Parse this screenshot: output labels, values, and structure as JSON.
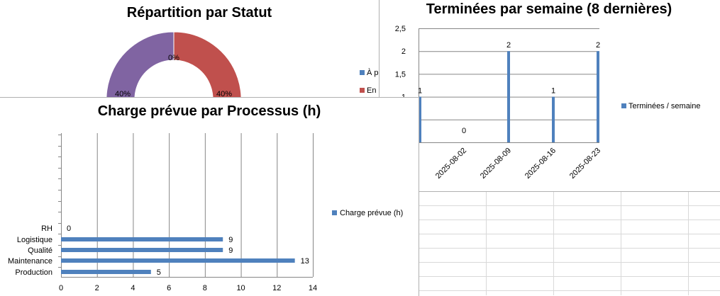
{
  "colors": {
    "bar": "#4f81bd",
    "purple": "#8064a2",
    "red": "#c0504d",
    "grid": "#868686",
    "sheet_grid": "#d9d9d9"
  },
  "chart_data": [
    {
      "type": "pie",
      "title": "Répartition par Statut",
      "slices": [
        {
          "label": "À p",
          "percent": 40,
          "color": "#8064a2"
        },
        {
          "label": "En",
          "percent": 40,
          "color": "#c0504d"
        },
        {
          "label": "",
          "percent": 0,
          "color": "#9bbb59"
        }
      ],
      "data_labels": [
        "40%",
        "40%",
        "0%"
      ],
      "legend": [
        {
          "label": "À p",
          "color": "#4f81bd"
        },
        {
          "label": "En",
          "color": "#c0504d"
        }
      ],
      "legend_position": "right"
    },
    {
      "type": "bar",
      "title": "Terminées par semaine (8 dernières)",
      "categories": [
        "",
        "2025-08-02",
        "2025-08-09",
        "2025-08-16",
        "2025-08-23"
      ],
      "series": [
        {
          "name": "Terminées / semaine",
          "values": [
            1,
            0,
            2,
            1,
            2
          ]
        }
      ],
      "ylim": [
        0,
        2.5
      ],
      "yticks": [
        "2,5",
        "2",
        "1,5",
        "1"
      ],
      "grid": true,
      "legend_position": "right"
    },
    {
      "type": "bar",
      "orientation": "horizontal",
      "title": "Charge prévue par Processus (h)",
      "categories": [
        "Production",
        "Maintenance",
        "Qualité",
        "Logistique",
        "RH"
      ],
      "series": [
        {
          "name": "Charge prévue (h)",
          "values": [
            5,
            13,
            9,
            9,
            0
          ]
        }
      ],
      "xlim": [
        0,
        14
      ],
      "xticks": [
        "0",
        "2",
        "4",
        "6",
        "8",
        "10",
        "12",
        "14"
      ],
      "grid": true,
      "legend_position": "right"
    }
  ]
}
